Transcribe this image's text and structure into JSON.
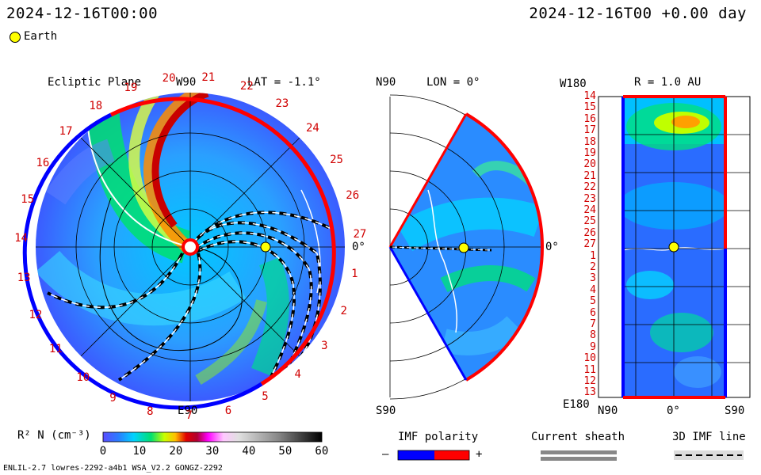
{
  "header": {
    "left_timestamp": "2024-12-16T00:00",
    "right_timestamp": "2024-12-16T00 +0.00 day",
    "legend_earth": "Earth"
  },
  "panels": {
    "ecliptic": {
      "title": "Ecliptic Plane",
      "top_label": "W90",
      "lat_label": "LAT = -1.1°",
      "right_label": "0°",
      "bottom_label": "E90",
      "rim_numbers": [
        "20",
        "21",
        "22",
        "23",
        "24",
        "25",
        "26",
        "27",
        "1",
        "2",
        "3",
        "4",
        "5",
        "6",
        "7",
        "8",
        "9",
        "10",
        "11",
        "12",
        "13",
        "14",
        "15",
        "16",
        "17",
        "18",
        "19"
      ]
    },
    "meridional": {
      "top_label": "N90",
      "lon_label": "LON = 0°",
      "right_label": "0°",
      "bottom_label": "S90"
    },
    "sphere": {
      "top_left_label": "W180",
      "r_label": "R = 1.0 AU",
      "bottom_left_label": "E180",
      "x_labels": [
        "N90",
        "0°",
        "S90"
      ],
      "y_labels": [
        "14",
        "15",
        "16",
        "17",
        "18",
        "19",
        "20",
        "21",
        "22",
        "23",
        "24",
        "25",
        "26",
        "27",
        "1",
        "2",
        "3",
        "4",
        "5",
        "6",
        "7",
        "8",
        "9",
        "10",
        "11",
        "12",
        "13"
      ]
    }
  },
  "colorbar": {
    "label": "R² N (cm⁻³)",
    "ticks": [
      "0",
      "10",
      "20",
      "30",
      "40",
      "50",
      "60"
    ]
  },
  "legends": {
    "imf_title": "IMF polarity",
    "imf_minus": "–",
    "imf_plus": "+",
    "sheath_title": "Current sheath",
    "imf_line_title": "3D IMF line"
  },
  "footer": {
    "left_text": "ENLIL-2.7 lowres-2292-a4b1 WSA_V2.2 GONGZ-2292"
  },
  "colors": {
    "positive_polarity": "#ff0000",
    "negative_polarity": "#0000ff",
    "earth": "#ffff00"
  }
}
